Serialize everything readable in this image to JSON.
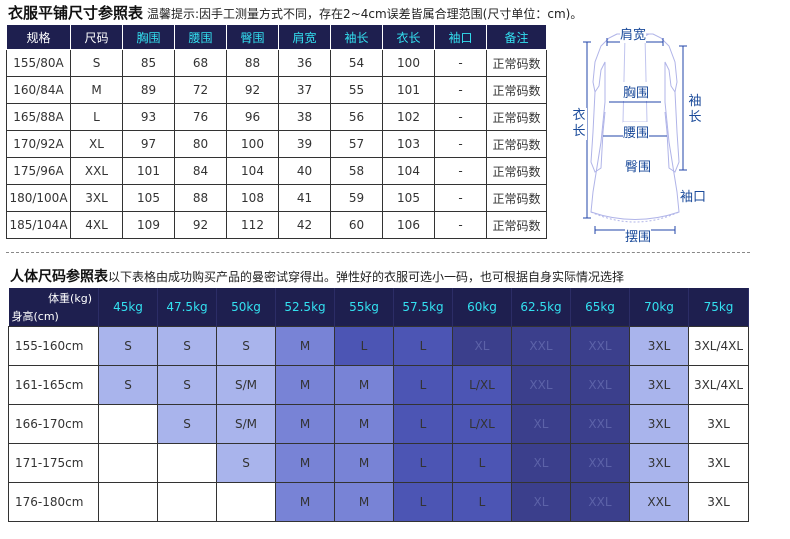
{
  "flat": {
    "title": "衣服平铺尺寸参照表",
    "tip": "温馨提示:因手工测量方式不同，存在2~4cm误差皆属合理范围(尺寸单位：cm)。",
    "headers": [
      "规格",
      "尺码",
      "胸围",
      "腰围",
      "臀围",
      "肩宽",
      "袖长",
      "衣长",
      "袖口",
      "备注"
    ],
    "rows": [
      [
        "155/80A",
        "S",
        "85",
        "68",
        "88",
        "36",
        "54",
        "100",
        "-",
        "正常码数"
      ],
      [
        "160/84A",
        "M",
        "89",
        "72",
        "92",
        "37",
        "55",
        "101",
        "-",
        "正常码数"
      ],
      [
        "165/88A",
        "L",
        "93",
        "76",
        "96",
        "38",
        "56",
        "102",
        "-",
        "正常码数"
      ],
      [
        "170/92A",
        "XL",
        "97",
        "80",
        "100",
        "39",
        "57",
        "103",
        "-",
        "正常码数"
      ],
      [
        "175/96A",
        "XXL",
        "101",
        "84",
        "104",
        "40",
        "58",
        "104",
        "-",
        "正常码数"
      ],
      [
        "180/100A",
        "3XL",
        "105",
        "88",
        "108",
        "41",
        "59",
        "105",
        "-",
        "正常码数"
      ],
      [
        "185/104A",
        "4XL",
        "109",
        "92",
        "112",
        "42",
        "60",
        "106",
        "-",
        "正常码数"
      ]
    ]
  },
  "diagram": {
    "shoulder": "肩宽",
    "chest": "胸围",
    "waist": "腰围",
    "hip": "臀围",
    "length": "衣长",
    "sleeve": "袖长",
    "cuff": "袖口",
    "hem": "摆围"
  },
  "body": {
    "title": "人体尺码参照表",
    "tip": "以下表格由成功购买产品的曼密试穿得出。弹性好的衣服可选小一码，也可根据自身实际情况选择",
    "corner_weight": "体重(kg)",
    "corner_height": "身高(cm)",
    "weights": [
      "45kg",
      "47.5kg",
      "50kg",
      "52.5kg",
      "55kg",
      "57.5kg",
      "60kg",
      "62.5kg",
      "65kg",
      "70kg",
      "75kg"
    ],
    "rows": [
      {
        "height": "155-160cm",
        "cells": [
          "S",
          "S",
          "S",
          "M",
          "L",
          "L",
          "XL",
          "XXL",
          "XXL",
          "3XL",
          "3XL/4XL"
        ]
      },
      {
        "height": "161-165cm",
        "cells": [
          "S",
          "S",
          "S/M",
          "M",
          "M",
          "L",
          "L/XL",
          "XXL",
          "XXL",
          "3XL",
          "3XL/4XL"
        ]
      },
      {
        "height": "166-170cm",
        "cells": [
          "",
          "S",
          "S/M",
          "M",
          "M",
          "L",
          "L/XL",
          "XL",
          "XXL",
          "3XL",
          "3XL"
        ]
      },
      {
        "height": "171-175cm",
        "cells": [
          "",
          "",
          "S",
          "M",
          "M",
          "L",
          "L",
          "XL",
          "XXL",
          "3XL",
          "3XL"
        ]
      },
      {
        "height": "176-180cm",
        "cells": [
          "",
          "",
          "",
          "M",
          "M",
          "L",
          "L",
          "XL",
          "XXL",
          "XXL",
          "3XL"
        ]
      }
    ],
    "shades": [
      [
        1,
        1,
        1,
        2,
        3,
        3,
        4,
        4,
        4,
        5,
        0
      ],
      [
        1,
        1,
        1,
        2,
        2,
        3,
        3,
        4,
        4,
        5,
        0
      ],
      [
        0,
        1,
        1,
        2,
        2,
        3,
        3,
        4,
        4,
        5,
        0
      ],
      [
        0,
        0,
        1,
        2,
        2,
        3,
        3,
        4,
        4,
        5,
        0
      ],
      [
        0,
        0,
        0,
        2,
        2,
        3,
        3,
        4,
        4,
        5,
        0
      ]
    ]
  }
}
